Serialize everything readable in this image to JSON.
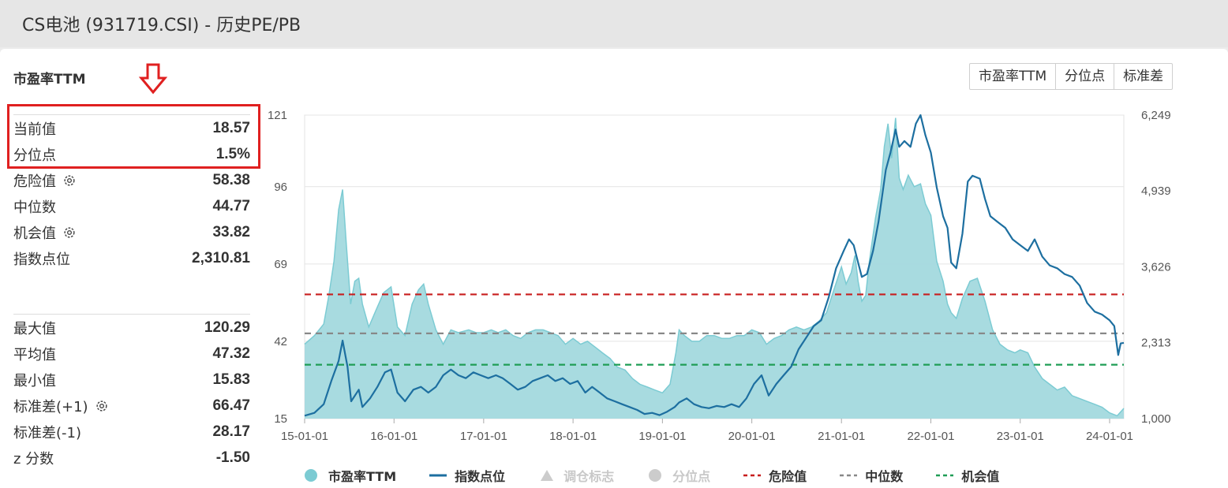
{
  "header": {
    "title": "CS电池 (931719.CSI) - 历史PE/PB"
  },
  "section_title": "市盈率TTM",
  "buttons": [
    "市盈率TTM",
    "分位点",
    "标准差"
  ],
  "stats_top": [
    {
      "label": "当前值",
      "value": "18.57",
      "gear": false
    },
    {
      "label": "分位点",
      "value": "1.5%",
      "gear": false
    },
    {
      "label": "危险值",
      "value": "58.38",
      "gear": true
    },
    {
      "label": "中位数",
      "value": "44.77",
      "gear": false
    },
    {
      "label": "机会值",
      "value": "33.82",
      "gear": true
    },
    {
      "label": "指数点位",
      "value": "2,310.81",
      "gear": false
    }
  ],
  "stats_bottom": [
    {
      "label": "最大值",
      "value": "120.29",
      "gear": false
    },
    {
      "label": "平均值",
      "value": "47.32",
      "gear": false
    },
    {
      "label": "最小值",
      "value": "15.83",
      "gear": false
    },
    {
      "label": "标准差(+1)",
      "value": "66.47",
      "gear": true
    },
    {
      "label": "标准差(-1)",
      "value": "28.17",
      "gear": false
    },
    {
      "label": "z 分数",
      "value": "-1.50",
      "gear": false
    }
  ],
  "legend": [
    {
      "label": "市盈率TTM",
      "kind": "dot",
      "color": "#7ccbd3",
      "enabled": true
    },
    {
      "label": "指数点位",
      "kind": "line",
      "color": "#1d6fa0",
      "enabled": true
    },
    {
      "label": "调仓标志",
      "kind": "triangle",
      "color": "#cccccc",
      "enabled": false
    },
    {
      "label": "分位点",
      "kind": "dot",
      "color": "#cccccc",
      "enabled": false
    },
    {
      "label": "危险值",
      "kind": "dash",
      "color": "#c81e1e",
      "enabled": true
    },
    {
      "label": "中位数",
      "kind": "dash",
      "color": "#888888",
      "enabled": true
    },
    {
      "label": "机会值",
      "kind": "dash",
      "color": "#1f9d55",
      "enabled": true
    }
  ],
  "colors": {
    "pe_fill": "#a3d9de",
    "pe_line": "#7ccbd3",
    "index_line": "#1d6fa0",
    "danger": "#c81e1e",
    "median": "#888888",
    "opportunity": "#1f9d55",
    "highlight": "#e02020"
  },
  "chart_data": {
    "type": "area",
    "x_tick_labels": [
      "15-01-01",
      "16-01-01",
      "17-01-01",
      "18-01-01",
      "19-01-01",
      "20-01-01",
      "21-01-01",
      "22-01-01",
      "23-01-01",
      "24-01-01"
    ],
    "xlim": [
      "2015-01-01",
      "2024-02-28"
    ],
    "y_left": {
      "ticks": [
        "15",
        "42",
        "69",
        "96",
        "121"
      ],
      "ylim": [
        15,
        121
      ]
    },
    "y_right": {
      "ticks": [
        "1,000",
        "2,313",
        "3,626",
        "4,939",
        "6,249"
      ],
      "ylim": [
        1000,
        6249
      ]
    },
    "reference_lines": [
      {
        "name": "危险值",
        "value": 58.38
      },
      {
        "name": "中位数",
        "value": 44.77
      },
      {
        "name": "机会值",
        "value": 33.82
      }
    ],
    "series": [
      {
        "name": "市盈率TTM",
        "axis": "left",
        "points": [
          [
            "2015-01-01",
            41
          ],
          [
            "2015-02-10",
            44
          ],
          [
            "2015-03-20",
            48
          ],
          [
            "2015-04-10",
            58
          ],
          [
            "2015-05-01",
            70
          ],
          [
            "2015-05-20",
            88
          ],
          [
            "2015-06-05",
            95
          ],
          [
            "2015-06-20",
            76
          ],
          [
            "2015-07-08",
            55
          ],
          [
            "2015-07-25",
            63
          ],
          [
            "2015-08-10",
            64
          ],
          [
            "2015-08-25",
            55
          ],
          [
            "2015-09-20",
            47
          ],
          [
            "2015-10-20",
            53
          ],
          [
            "2015-11-20",
            59
          ],
          [
            "2015-12-20",
            61
          ],
          [
            "2016-01-15",
            47
          ],
          [
            "2016-02-15",
            44
          ],
          [
            "2016-03-15",
            55
          ],
          [
            "2016-04-10",
            60
          ],
          [
            "2016-05-01",
            62
          ],
          [
            "2016-05-20",
            55
          ],
          [
            "2016-06-20",
            46
          ],
          [
            "2016-07-20",
            41
          ],
          [
            "2016-08-20",
            46
          ],
          [
            "2016-09-20",
            45
          ],
          [
            "2016-11-01",
            46
          ],
          [
            "2016-12-01",
            45
          ],
          [
            "2017-01-01",
            45
          ],
          [
            "2017-02-01",
            46
          ],
          [
            "2017-03-01",
            45
          ],
          [
            "2017-04-01",
            46
          ],
          [
            "2017-05-01",
            44
          ],
          [
            "2017-06-01",
            43
          ],
          [
            "2017-07-01",
            45
          ],
          [
            "2017-08-01",
            46
          ],
          [
            "2017-09-01",
            46
          ],
          [
            "2017-10-01",
            45
          ],
          [
            "2017-11-01",
            44
          ],
          [
            "2017-12-01",
            41
          ],
          [
            "2018-01-01",
            43
          ],
          [
            "2018-02-01",
            41
          ],
          [
            "2018-03-01",
            42
          ],
          [
            "2018-04-01",
            40
          ],
          [
            "2018-05-01",
            38
          ],
          [
            "2018-06-01",
            36
          ],
          [
            "2018-07-01",
            33
          ],
          [
            "2018-08-01",
            32
          ],
          [
            "2018-09-01",
            29
          ],
          [
            "2018-10-01",
            27
          ],
          [
            "2018-11-01",
            26
          ],
          [
            "2018-12-01",
            25
          ],
          [
            "2019-01-01",
            24
          ],
          [
            "2019-02-01",
            27
          ],
          [
            "2019-02-25",
            38
          ],
          [
            "2019-03-10",
            46
          ],
          [
            "2019-04-01",
            44
          ],
          [
            "2019-05-01",
            42
          ],
          [
            "2019-06-01",
            42
          ],
          [
            "2019-07-01",
            44
          ],
          [
            "2019-08-01",
            44
          ],
          [
            "2019-09-01",
            43
          ],
          [
            "2019-10-01",
            43
          ],
          [
            "2019-11-01",
            44
          ],
          [
            "2019-12-01",
            44
          ],
          [
            "2020-01-01",
            46
          ],
          [
            "2020-02-01",
            45
          ],
          [
            "2020-03-01",
            41
          ],
          [
            "2020-04-01",
            43
          ],
          [
            "2020-05-01",
            44
          ],
          [
            "2020-06-01",
            46
          ],
          [
            "2020-07-01",
            47
          ],
          [
            "2020-08-01",
            46
          ],
          [
            "2020-09-01",
            47
          ],
          [
            "2020-10-01",
            49
          ],
          [
            "2020-11-01",
            52
          ],
          [
            "2020-12-01",
            60
          ],
          [
            "2021-01-01",
            68
          ],
          [
            "2021-01-20",
            62
          ],
          [
            "2021-02-10",
            66
          ],
          [
            "2021-02-25",
            72
          ],
          [
            "2021-03-10",
            63
          ],
          [
            "2021-03-25",
            56
          ],
          [
            "2021-04-10",
            58
          ],
          [
            "2021-04-25",
            70
          ],
          [
            "2021-05-20",
            85
          ],
          [
            "2021-06-10",
            95
          ],
          [
            "2021-06-25",
            110
          ],
          [
            "2021-07-10",
            118
          ],
          [
            "2021-07-25",
            106
          ],
          [
            "2021-08-10",
            120
          ],
          [
            "2021-08-25",
            99
          ],
          [
            "2021-09-10",
            95
          ],
          [
            "2021-10-01",
            100
          ],
          [
            "2021-10-25",
            96
          ],
          [
            "2021-11-20",
            97
          ],
          [
            "2021-12-10",
            90
          ],
          [
            "2022-01-01",
            86
          ],
          [
            "2022-01-25",
            70
          ],
          [
            "2022-02-20",
            63
          ],
          [
            "2022-03-10",
            55
          ],
          [
            "2022-03-25",
            52
          ],
          [
            "2022-04-15",
            50
          ],
          [
            "2022-05-10",
            57
          ],
          [
            "2022-06-10",
            63
          ],
          [
            "2022-07-10",
            64
          ],
          [
            "2022-08-10",
            56
          ],
          [
            "2022-09-10",
            46
          ],
          [
            "2022-10-10",
            41
          ],
          [
            "2022-11-10",
            39
          ],
          [
            "2022-12-10",
            38
          ],
          [
            "2023-01-01",
            39
          ],
          [
            "2023-02-01",
            38
          ],
          [
            "2023-03-01",
            33
          ],
          [
            "2023-04-01",
            29
          ],
          [
            "2023-05-01",
            27
          ],
          [
            "2023-06-01",
            25
          ],
          [
            "2023-07-01",
            26
          ],
          [
            "2023-08-01",
            23
          ],
          [
            "2023-09-01",
            22
          ],
          [
            "2023-10-01",
            21
          ],
          [
            "2023-11-01",
            20
          ],
          [
            "2023-12-01",
            19
          ],
          [
            "2024-01-01",
            17
          ],
          [
            "2024-02-01",
            16
          ],
          [
            "2024-02-28",
            18.57
          ]
        ]
      },
      {
        "name": "指数点位",
        "axis": "right",
        "points": [
          [
            "2015-01-01",
            1050
          ],
          [
            "2015-02-10",
            1100
          ],
          [
            "2015-03-20",
            1250
          ],
          [
            "2015-04-20",
            1650
          ],
          [
            "2015-05-20",
            2000
          ],
          [
            "2015-06-05",
            2350
          ],
          [
            "2015-06-25",
            1900
          ],
          [
            "2015-07-10",
            1300
          ],
          [
            "2015-08-10",
            1500
          ],
          [
            "2015-08-25",
            1200
          ],
          [
            "2015-09-25",
            1350
          ],
          [
            "2015-10-25",
            1550
          ],
          [
            "2015-11-25",
            1800
          ],
          [
            "2015-12-20",
            1850
          ],
          [
            "2016-01-15",
            1450
          ],
          [
            "2016-02-15",
            1300
          ],
          [
            "2016-03-20",
            1500
          ],
          [
            "2016-04-20",
            1550
          ],
          [
            "2016-05-20",
            1450
          ],
          [
            "2016-06-20",
            1550
          ],
          [
            "2016-07-20",
            1750
          ],
          [
            "2016-08-20",
            1850
          ],
          [
            "2016-09-20",
            1750
          ],
          [
            "2016-10-20",
            1700
          ],
          [
            "2016-11-20",
            1800
          ],
          [
            "2016-12-20",
            1750
          ],
          [
            "2017-01-20",
            1700
          ],
          [
            "2017-02-20",
            1750
          ],
          [
            "2017-03-20",
            1700
          ],
          [
            "2017-04-20",
            1600
          ],
          [
            "2017-05-20",
            1500
          ],
          [
            "2017-06-20",
            1550
          ],
          [
            "2017-07-20",
            1650
          ],
          [
            "2017-08-20",
            1700
          ],
          [
            "2017-09-20",
            1750
          ],
          [
            "2017-10-20",
            1650
          ],
          [
            "2017-11-20",
            1700
          ],
          [
            "2017-12-20",
            1600
          ],
          [
            "2018-01-20",
            1650
          ],
          [
            "2018-02-20",
            1450
          ],
          [
            "2018-03-20",
            1550
          ],
          [
            "2018-04-20",
            1450
          ],
          [
            "2018-05-20",
            1350
          ],
          [
            "2018-06-20",
            1300
          ],
          [
            "2018-07-20",
            1250
          ],
          [
            "2018-08-20",
            1200
          ],
          [
            "2018-09-20",
            1150
          ],
          [
            "2018-10-20",
            1080
          ],
          [
            "2018-11-20",
            1100
          ],
          [
            "2018-12-20",
            1060
          ],
          [
            "2019-01-20",
            1120
          ],
          [
            "2019-02-20",
            1200
          ],
          [
            "2019-03-10",
            1280
          ],
          [
            "2019-04-10",
            1350
          ],
          [
            "2019-05-10",
            1250
          ],
          [
            "2019-06-10",
            1200
          ],
          [
            "2019-07-10",
            1180
          ],
          [
            "2019-08-10",
            1220
          ],
          [
            "2019-09-10",
            1200
          ],
          [
            "2019-10-10",
            1250
          ],
          [
            "2019-11-10",
            1200
          ],
          [
            "2019-12-10",
            1350
          ],
          [
            "2020-01-10",
            1600
          ],
          [
            "2020-02-10",
            1750
          ],
          [
            "2020-03-10",
            1400
          ],
          [
            "2020-04-10",
            1600
          ],
          [
            "2020-05-10",
            1750
          ],
          [
            "2020-06-10",
            1900
          ],
          [
            "2020-07-10",
            2200
          ],
          [
            "2020-08-10",
            2400
          ],
          [
            "2020-09-10",
            2600
          ],
          [
            "2020-10-10",
            2700
          ],
          [
            "2020-11-10",
            3100
          ],
          [
            "2020-12-10",
            3600
          ],
          [
            "2021-01-10",
            3900
          ],
          [
            "2021-02-01",
            4100
          ],
          [
            "2021-02-20",
            4000
          ],
          [
            "2021-03-10",
            3700
          ],
          [
            "2021-03-25",
            3450
          ],
          [
            "2021-04-15",
            3500
          ],
          [
            "2021-05-10",
            3900
          ],
          [
            "2021-06-01",
            4400
          ],
          [
            "2021-07-01",
            5300
          ],
          [
            "2021-07-20",
            5600
          ],
          [
            "2021-08-10",
            6000
          ],
          [
            "2021-08-25",
            5700
          ],
          [
            "2021-09-15",
            5800
          ],
          [
            "2021-10-10",
            5700
          ],
          [
            "2021-11-01",
            6100
          ],
          [
            "2021-11-20",
            6249
          ],
          [
            "2021-12-10",
            5900
          ],
          [
            "2022-01-01",
            5600
          ],
          [
            "2022-01-25",
            5000
          ],
          [
            "2022-02-20",
            4500
          ],
          [
            "2022-03-10",
            4300
          ],
          [
            "2022-03-25",
            3700
          ],
          [
            "2022-04-15",
            3600
          ],
          [
            "2022-05-10",
            4200
          ],
          [
            "2022-06-01",
            5100
          ],
          [
            "2022-06-20",
            5200
          ],
          [
            "2022-07-20",
            5150
          ],
          [
            "2022-08-10",
            4800
          ],
          [
            "2022-09-01",
            4500
          ],
          [
            "2022-10-01",
            4400
          ],
          [
            "2022-11-01",
            4300
          ],
          [
            "2022-12-01",
            4100
          ],
          [
            "2023-01-01",
            4000
          ],
          [
            "2023-02-01",
            3900
          ],
          [
            "2023-03-01",
            4100
          ],
          [
            "2023-04-01",
            3800
          ],
          [
            "2023-05-01",
            3650
          ],
          [
            "2023-06-01",
            3600
          ],
          [
            "2023-07-01",
            3500
          ],
          [
            "2023-08-01",
            3450
          ],
          [
            "2023-09-01",
            3300
          ],
          [
            "2023-10-01",
            3000
          ],
          [
            "2023-11-01",
            2850
          ],
          [
            "2023-12-01",
            2800
          ],
          [
            "2024-01-01",
            2700
          ],
          [
            "2024-01-20",
            2600
          ],
          [
            "2024-02-05",
            2100
          ],
          [
            "2024-02-15",
            2300
          ],
          [
            "2024-02-28",
            2310.81
          ]
        ]
      }
    ]
  }
}
